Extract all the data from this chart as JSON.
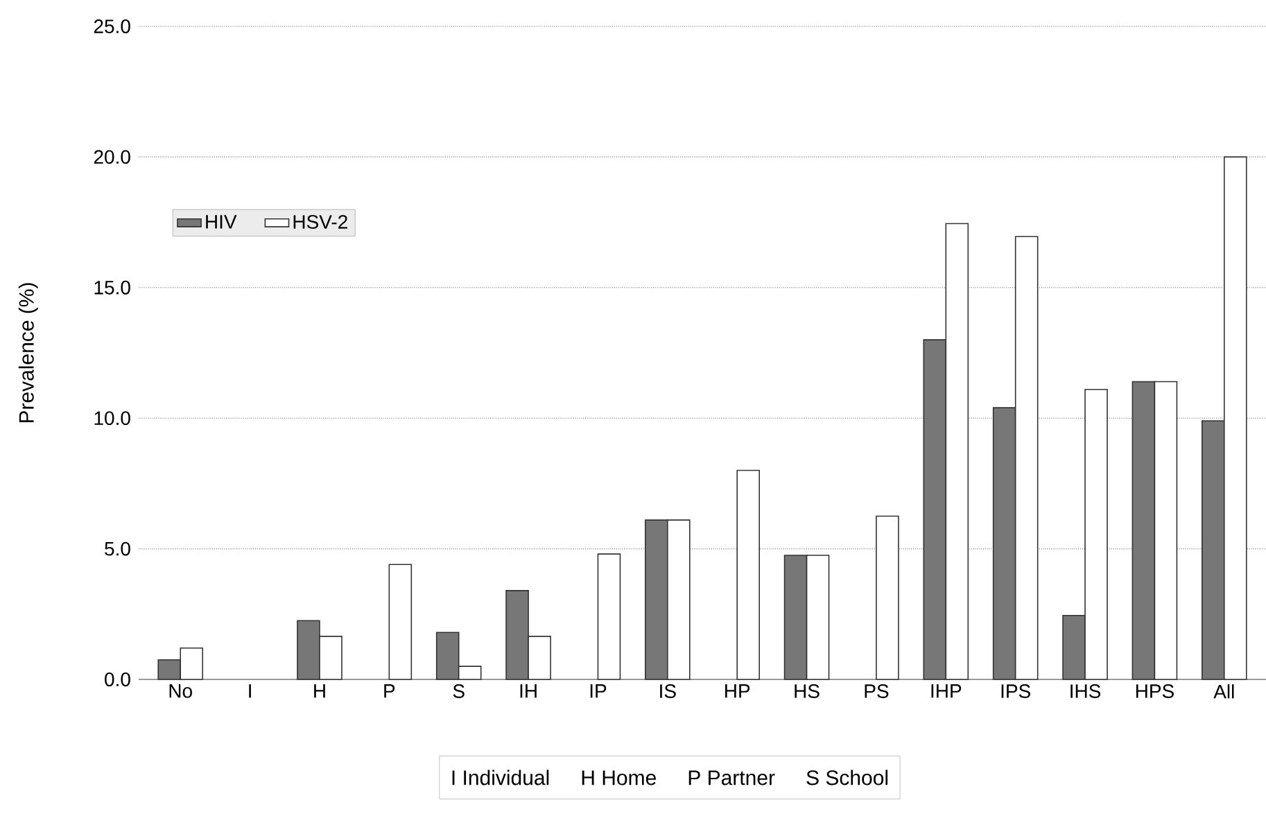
{
  "chart_data": {
    "type": "bar",
    "ylabel": "Prevalence (%)",
    "categories": [
      "No",
      "I",
      "H",
      "P",
      "S",
      "IH",
      "IP",
      "IS",
      "HP",
      "HS",
      "PS",
      "IHP",
      "IPS",
      "IHS",
      "HPS",
      "All"
    ],
    "series": [
      {
        "name": "HIV",
        "color": "#777777",
        "values": [
          0.75,
          null,
          2.25,
          null,
          1.8,
          3.4,
          null,
          6.1,
          null,
          4.75,
          null,
          13.0,
          10.4,
          2.45,
          11.4,
          9.9
        ]
      },
      {
        "name": "HSV-2",
        "color": "#ffffff",
        "values": [
          1.2,
          null,
          1.65,
          4.4,
          0.5,
          1.65,
          4.8,
          6.1,
          8.0,
          4.75,
          6.25,
          17.45,
          16.95,
          11.1,
          11.4,
          20.0
        ]
      }
    ],
    "ylim": [
      0,
      25
    ],
    "yticks": [
      {
        "value": 0,
        "label": "0.0"
      },
      {
        "value": 5,
        "label": "5.0"
      },
      {
        "value": 10,
        "label": "10.0"
      },
      {
        "value": 15,
        "label": "15.0"
      },
      {
        "value": 20,
        "label": "20.0"
      },
      {
        "value": 25,
        "label": "25.0"
      }
    ],
    "grid": "y",
    "legend": "top left",
    "annotations": [
      "I  Individual",
      "H  Home",
      "P  Partner",
      "S  School"
    ]
  }
}
